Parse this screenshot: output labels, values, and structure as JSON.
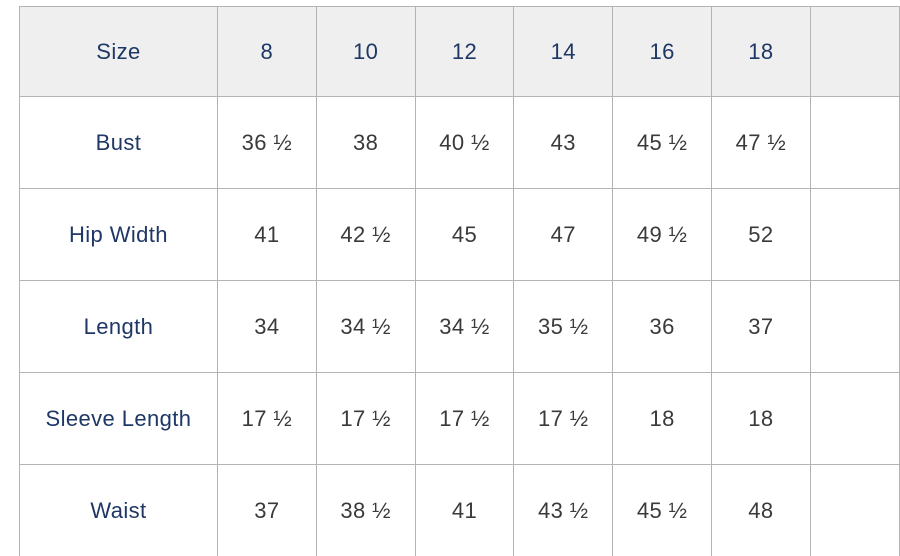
{
  "chart_data": {
    "type": "table",
    "header_label": "Size",
    "columns": [
      "8",
      "10",
      "12",
      "14",
      "16",
      "18"
    ],
    "rows": [
      {
        "label": "Bust",
        "values": [
          "36 ½",
          "38",
          "40 ½",
          "43",
          "45 ½",
          "47 ½"
        ]
      },
      {
        "label": "Hip Width",
        "values": [
          "41",
          "42 ½",
          "45",
          "47",
          "49 ½",
          "52"
        ]
      },
      {
        "label": "Length",
        "values": [
          "34",
          "34 ½",
          "34 ½",
          "35 ½",
          "36",
          "37"
        ]
      },
      {
        "label": "Sleeve Length",
        "values": [
          "17 ½",
          "17 ½",
          "17 ½",
          "17 ½",
          "18",
          "18"
        ]
      },
      {
        "label": "Waist",
        "values": [
          "37",
          "38 ½",
          "41",
          "43 ½",
          "45 ½",
          "48"
        ]
      }
    ]
  },
  "colors": {
    "header_background": "#efefef",
    "header_text": "#1e3765",
    "row_label_text": "#1e3765",
    "value_text": "#3a3a3a",
    "border": "#b3b3b3",
    "page_background": "#ffffff"
  }
}
